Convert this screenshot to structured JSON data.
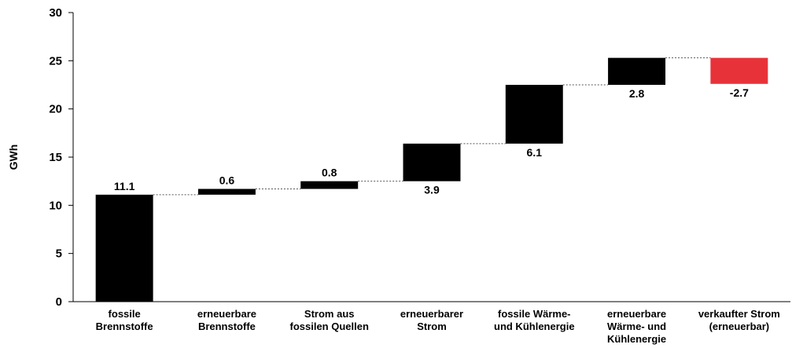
{
  "chart_data": {
    "type": "waterfall",
    "ylabel": "GWh",
    "ylim": [
      0,
      30
    ],
    "yticks": [
      0,
      5,
      10,
      15,
      20,
      25,
      30
    ],
    "grid": false,
    "legend": "none",
    "categories": [
      [
        "fossile",
        "Brennstoffe"
      ],
      [
        "erneuerbare",
        "Brennstoffe"
      ],
      [
        "Strom aus",
        "fossilen Quellen"
      ],
      [
        "erneuerbarer",
        "Strom"
      ],
      [
        "fossile Wärme-",
        "und Kühlenergie"
      ],
      [
        "erneuerbare",
        "Wärme- und",
        "Kühlenergie"
      ],
      [
        "verkaufter Strom",
        "(erneuerbar)"
      ]
    ],
    "values": [
      11.1,
      0.6,
      0.8,
      3.9,
      6.1,
      2.8,
      -2.7
    ],
    "labels": [
      "11.1",
      "0.6",
      "0.8",
      "3.9",
      "6.1",
      "2.8",
      "-2.7"
    ],
    "colors": {
      "positive": "#000000",
      "negative": "#e8323a",
      "connector": "#555555",
      "axis": "#000000"
    }
  }
}
